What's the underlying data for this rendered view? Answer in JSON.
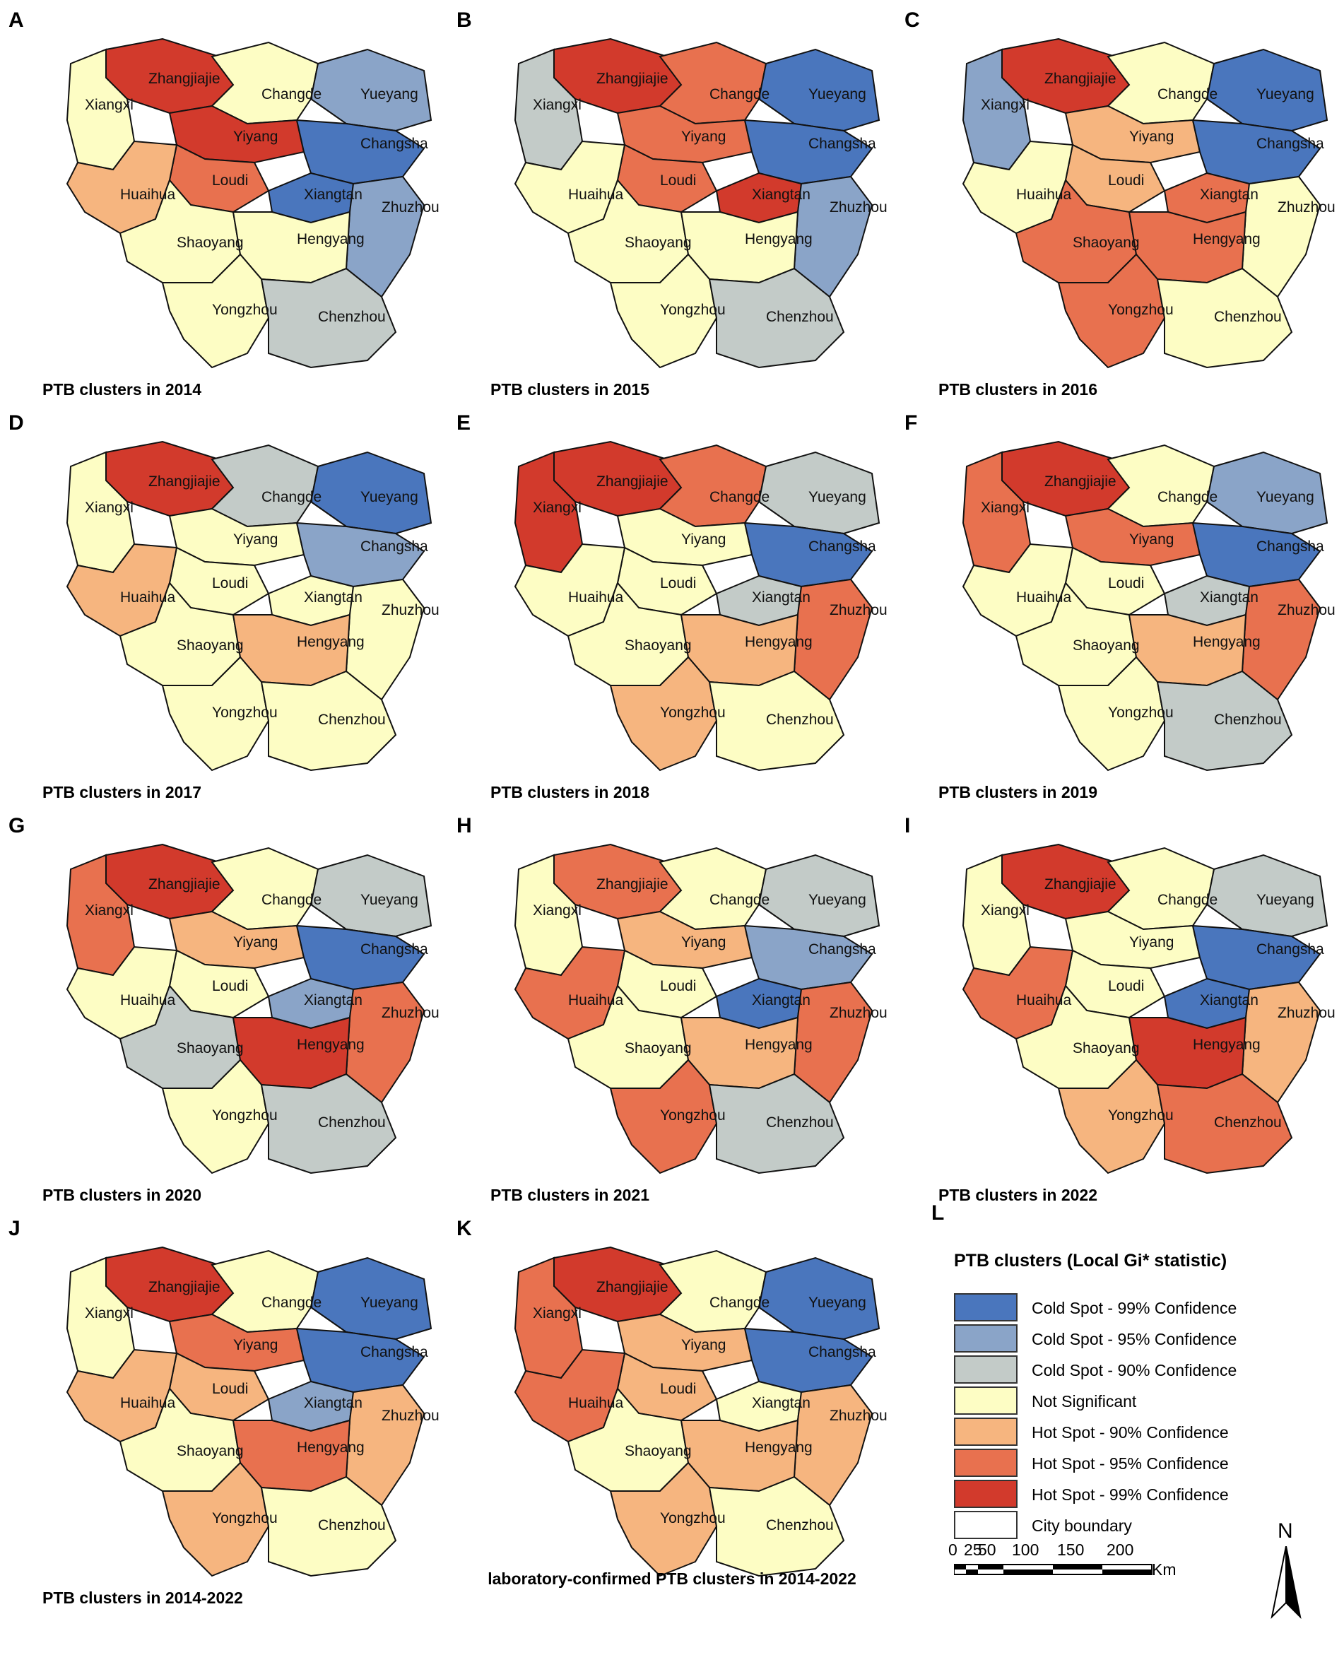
{
  "colors": {
    "cold99": "#4a76bd",
    "cold95": "#8aa4c8",
    "cold90": "#c3cbc8",
    "ns": "#fdfdc4",
    "hot90": "#f6b57f",
    "hot95": "#e8714f",
    "hot99": "#d23a2c",
    "district_line": "#8a8a8a",
    "city_line": "#111111"
  },
  "panels": [
    {
      "letter": "A",
      "caption": "PTB clusters in 2014",
      "labels": {
        "Zhangjiajie": "Zhangjiajie",
        "Changde": "Changde",
        "Xiangxi": "Xiangxi",
        "Yueyang": "Yueyang",
        "Yiyang": "Yiyang",
        "Changsha": "Changsha",
        "Loudi": "Loudi",
        "Xiangtan": "Xiangtan",
        "Huaihua": "Huaihua",
        "Zhuzhou": "Zhuzhou",
        "Shaoyang": "Shaoyang",
        "Hengyang": "Hengyang",
        "Yongzhou": "Yongzhou",
        "Chenzhou": "Chenzhou"
      },
      "fills": {
        "Zhangjiajie": "hot99",
        "Changde": "ns",
        "Xiangxi": "ns",
        "Yueyang": "cold95",
        "Yiyang": "hot99",
        "Changsha": "cold99",
        "Loudi": "hot95",
        "Xiangtan": "cold99",
        "Huaihua": "hot90",
        "Zhuzhou": "cold95",
        "Shaoyang": "ns",
        "Hengyang": "ns",
        "Yongzhou": "ns",
        "Chenzhou": "cold90"
      }
    },
    {
      "letter": "B",
      "caption": "PTB clusters in 2015",
      "labels": {
        "Zhangjiajie": "Zhangjiajie",
        "Changde": "Changde",
        "Xiangxi": "Xiangxi",
        "Yueyang": "Yueyang",
        "Yiyang": "Yiyang",
        "Changsha": "Changsha",
        "Loudi": "Loudi",
        "Xiangtan": "Xiangtan",
        "Huaihua": "Huaihua",
        "Zhuzhou": "Zhuzhou",
        "Shaoyang": "Shaoyang",
        "Hengyang": "Hengyang",
        "Yongzhou": "Yongzhou",
        "Chenzhou": "Chenzhou"
      },
      "fills": {
        "Zhangjiajie": "hot99",
        "Changde": "hot95",
        "Xiangxi": "cold90",
        "Yueyang": "cold99",
        "Yiyang": "hot95",
        "Changsha": "cold99",
        "Loudi": "hot95",
        "Xiangtan": "hot99",
        "Huaihua": "ns",
        "Zhuzhou": "cold95",
        "Shaoyang": "ns",
        "Hengyang": "ns",
        "Yongzhou": "ns",
        "Chenzhou": "cold90"
      }
    },
    {
      "letter": "C",
      "caption": "PTB clusters in 2016",
      "labels": {
        "Zhangjiajie": "Zhangjiajie",
        "Changde": "Changde",
        "Xiangxi": "Xiangxi",
        "Yueyang": "Yueyang",
        "Yiyang": "Yiyang",
        "Changsha": "Changsha",
        "Loudi": "Loudi",
        "Xiangtan": "Xiangtan",
        "Huaihua": "Huaihua",
        "Zhuzhou": "Zhuzhou",
        "Shaoyang": "Shaoyang",
        "Hengyang": "Hengyang",
        "Yongzhou": "Yongzhou",
        "Chenzhou": "Chenzhou"
      },
      "fills": {
        "Zhangjiajie": "hot99",
        "Changde": "ns",
        "Xiangxi": "cold95",
        "Yueyang": "cold99",
        "Yiyang": "hot90",
        "Changsha": "cold99",
        "Loudi": "hot90",
        "Xiangtan": "hot95",
        "Huaihua": "ns",
        "Zhuzhou": "ns",
        "Shaoyang": "hot95",
        "Hengyang": "hot95",
        "Yongzhou": "hot95",
        "Chenzhou": "ns"
      }
    },
    {
      "letter": "D",
      "caption": "PTB clusters in 2017",
      "labels": {
        "Zhangjiajie": "Zhangjiajie",
        "Changde": "Changde",
        "Xiangxi": "Xiangxi",
        "Yueyang": "Yueyang",
        "Yiyang": "Yiyang",
        "Changsha": "Changsha",
        "Loudi": "Loudi",
        "Xiangtan": "Xiangtan",
        "Huaihua": "Huaihua",
        "Zhuzhou": "Zhuzhou",
        "Shaoyang": "Shaoyang",
        "Hengyang": "Hengyang",
        "Yongzhou": "Yongzhou",
        "Chenzhou": "Chenzhou"
      },
      "fills": {
        "Zhangjiajie": "hot99",
        "Changde": "cold90",
        "Xiangxi": "ns",
        "Yueyang": "cold99",
        "Yiyang": "ns",
        "Changsha": "cold95",
        "Loudi": "ns",
        "Xiangtan": "ns",
        "Huaihua": "hot90",
        "Zhuzhou": "ns",
        "Shaoyang": "ns",
        "Hengyang": "hot90",
        "Yongzhou": "ns",
        "Chenzhou": "ns"
      }
    },
    {
      "letter": "E",
      "caption": "PTB clusters in 2018",
      "labels": {
        "Zhangjiajie": "Zhangjiajie",
        "Changde": "Changde",
        "Xiangxi": "Xiangxi",
        "Yueyang": "Yueyang",
        "Yiyang": "Yiyang",
        "Changsha": "Changsha",
        "Loudi": "Loudi",
        "Xiangtan": "Xiangtan",
        "Huaihua": "Huaihua",
        "Zhuzhou": "Zhuzhou",
        "Shaoyang": "Shaoyang",
        "Hengyang": "Hengyang",
        "Yongzhou": "Yongzhou",
        "Chenzhou": "Chenzhou"
      },
      "fills": {
        "Zhangjiajie": "hot99",
        "Changde": "hot95",
        "Xiangxi": "hot99",
        "Yueyang": "cold90",
        "Yiyang": "ns",
        "Changsha": "cold99",
        "Loudi": "ns",
        "Xiangtan": "cold90",
        "Huaihua": "ns",
        "Zhuzhou": "hot95",
        "Shaoyang": "ns",
        "Hengyang": "hot90",
        "Yongzhou": "hot90",
        "Chenzhou": "ns"
      }
    },
    {
      "letter": "F",
      "caption": "PTB clusters in 2019",
      "labels": {
        "Zhangjiajie": "Zhangjiajie",
        "Changde": "Changde",
        "Xiangxi": "Xiangxi",
        "Yueyang": "Yueyang",
        "Yiyang": "Yiyang",
        "Changsha": "Changsha",
        "Loudi": "Loudi",
        "Xiangtan": "Xiangtan",
        "Huaihua": "Huaihua",
        "Zhuzhou": "Zhuzhou",
        "Shaoyang": "Shaoyang",
        "Hengyang": "Hengyang",
        "Yongzhou": "Yongzhou",
        "Chenzhou": "Chenzhou"
      },
      "fills": {
        "Zhangjiajie": "hot99",
        "Changde": "ns",
        "Xiangxi": "hot95",
        "Yueyang": "cold95",
        "Yiyang": "hot95",
        "Changsha": "cold99",
        "Loudi": "ns",
        "Xiangtan": "cold90",
        "Huaihua": "ns",
        "Zhuzhou": "hot95",
        "Shaoyang": "ns",
        "Hengyang": "hot90",
        "Yongzhou": "ns",
        "Chenzhou": "cold90"
      }
    },
    {
      "letter": "G",
      "caption": "PTB clusters in 2020",
      "labels": {
        "Zhangjiajie": "Zhangjiajie",
        "Changde": "Changde",
        "Xiangxi": "Xiangxi",
        "Yueyang": "Yueyang",
        "Yiyang": "Yiyang",
        "Changsha": "Changsha",
        "Loudi": "Loudi",
        "Xiangtan": "Xiangtan",
        "Huaihua": "Huaihua",
        "Zhuzhou": "Zhuzhou",
        "Shaoyang": "Shaoyang",
        "Hengyang": "Hengyang",
        "Yongzhou": "Yongzhou",
        "Chenzhou": "Chenzhou"
      },
      "fills": {
        "Zhangjiajie": "hot99",
        "Changde": "ns",
        "Xiangxi": "hot95",
        "Yueyang": "cold90",
        "Yiyang": "hot90",
        "Changsha": "cold99",
        "Loudi": "ns",
        "Xiangtan": "cold95",
        "Huaihua": "ns",
        "Zhuzhou": "hot95",
        "Shaoyang": "cold90",
        "Hengyang": "hot99",
        "Yongzhou": "ns",
        "Chenzhou": "cold90"
      }
    },
    {
      "letter": "H",
      "caption": "PTB clusters in 2021",
      "labels": {
        "Zhangjiajie": "Zhangjiajie",
        "Changde": "Changde",
        "Xiangxi": "Xiangxi",
        "Yueyang": "Yueyang",
        "Yiyang": "Yiyang",
        "Changsha": "Changsha",
        "Loudi": "Loudi",
        "Xiangtan": "Xiangtan",
        "Huaihua": "Huaihua",
        "Zhuzhou": "Zhuzhou",
        "Shaoyang": "Shaoyang",
        "Hengyang": "Hengyang",
        "Yongzhou": "Yongzhou",
        "Chenzhou": "Chenzhou"
      },
      "fills": {
        "Zhangjiajie": "hot95",
        "Changde": "ns",
        "Xiangxi": "ns",
        "Yueyang": "cold90",
        "Yiyang": "hot90",
        "Changsha": "cold95",
        "Loudi": "ns",
        "Xiangtan": "cold99",
        "Huaihua": "hot95",
        "Zhuzhou": "hot95",
        "Shaoyang": "ns",
        "Hengyang": "hot90",
        "Yongzhou": "hot95",
        "Chenzhou": "cold90"
      }
    },
    {
      "letter": "I",
      "caption": "PTB clusters in 2022",
      "labels": {
        "Zhangjiajie": "Zhangjiajie",
        "Changde": "Changde",
        "Xiangxi": "Xiangxi",
        "Yueyang": "Yueyang",
        "Yiyang": "Yiyang",
        "Changsha": "Changsha",
        "Loudi": "Loudi",
        "Xiangtan": "Xiangtan",
        "Huaihua": "Huaihua",
        "Zhuzhou": "Zhuzhou",
        "Shaoyang": "Shaoyang",
        "Hengyang": "Hengyang",
        "Yongzhou": "Yongzhou",
        "Chenzhou": "Chenzhou"
      },
      "fills": {
        "Zhangjiajie": "hot99",
        "Changde": "ns",
        "Xiangxi": "ns",
        "Yueyang": "cold90",
        "Yiyang": "ns",
        "Changsha": "cold99",
        "Loudi": "ns",
        "Xiangtan": "cold99",
        "Huaihua": "hot95",
        "Zhuzhou": "hot90",
        "Shaoyang": "ns",
        "Hengyang": "hot99",
        "Yongzhou": "hot90",
        "Chenzhou": "hot95"
      }
    },
    {
      "letter": "J",
      "caption": "PTB clusters in 2014-2022",
      "labels": {
        "Zhangjiajie": "Zhangjiajie",
        "Changde": "Changde",
        "Xiangxi": "Xiangxi",
        "Yueyang": "Yueyang",
        "Yiyang": "Yiyang",
        "Changsha": "Changsha",
        "Loudi": "Loudi",
        "Xiangtan": "Xiangtan",
        "Huaihua": "Huaihua",
        "Zhuzhou": "Zhuzhou",
        "Shaoyang": "Shaoyang",
        "Hengyang": "Hengyang",
        "Yongzhou": "Yongzhou",
        "Chenzhou": "Chenzhou"
      },
      "fills": {
        "Zhangjiajie": "hot99",
        "Changde": "ns",
        "Xiangxi": "ns",
        "Yueyang": "cold99",
        "Yiyang": "hot95",
        "Changsha": "cold99",
        "Loudi": "hot90",
        "Xiangtan": "cold95",
        "Huaihua": "hot90",
        "Zhuzhou": "hot90",
        "Shaoyang": "ns",
        "Hengyang": "hot95",
        "Yongzhou": "hot90",
        "Chenzhou": "ns"
      }
    },
    {
      "letter": "K",
      "caption": "laboratory-confirmed PTB clusters in 2014-2022",
      "labels": {
        "Zhangjiajie": "Zhangjiajie",
        "Changde": "Changde",
        "Xiangxi": "Xiangxi",
        "Yueyang": "Yueyang",
        "Yiyang": "Yiyang",
        "Changsha": "Changsha",
        "Loudi": "Loudi",
        "Xiangtan": "Xiangtan",
        "Huaihua": "Huaihua",
        "Zhuzhou": "Zhuzhou",
        "Shaoyang": "Shaoyang",
        "Hengyang": "Hengyang",
        "Yongzhou": "Yongzhou",
        "Chenzhou": "Chenzhou"
      },
      "fills": {
        "Zhangjiajie": "hot99",
        "Changde": "ns",
        "Xiangxi": "hot95",
        "Yueyang": "cold99",
        "Yiyang": "hot90",
        "Changsha": "cold99",
        "Loudi": "hot90",
        "Xiangtan": "ns",
        "Huaihua": "hot95",
        "Zhuzhou": "hot90",
        "Shaoyang": "ns",
        "Hengyang": "hot90",
        "Yongzhou": "hot90",
        "Chenzhou": "ns"
      }
    }
  ],
  "legend": {
    "letter": "L",
    "title": "PTB clusters (Local Gi* statistic)",
    "items": [
      {
        "key": "cold99",
        "label": "Cold Spot - 99% Confidence"
      },
      {
        "key": "cold95",
        "label": "Cold Spot - 95% Confidence"
      },
      {
        "key": "cold90",
        "label": "Cold Spot - 90% Confidence"
      },
      {
        "key": "ns",
        "label": "Not Significant"
      },
      {
        "key": "hot90",
        "label": "Hot Spot - 90% Confidence"
      },
      {
        "key": "hot95",
        "label": "Hot Spot - 95% Confidence"
      },
      {
        "key": "hot99",
        "label": "Hot Spot - 99% Confidence"
      },
      {
        "key": "boundary",
        "label": "City boundary"
      }
    ]
  },
  "scale": {
    "ticks": [
      "0",
      "25",
      "50",
      "100",
      "150",
      "200"
    ],
    "unit": "Km"
  },
  "north": "N"
}
